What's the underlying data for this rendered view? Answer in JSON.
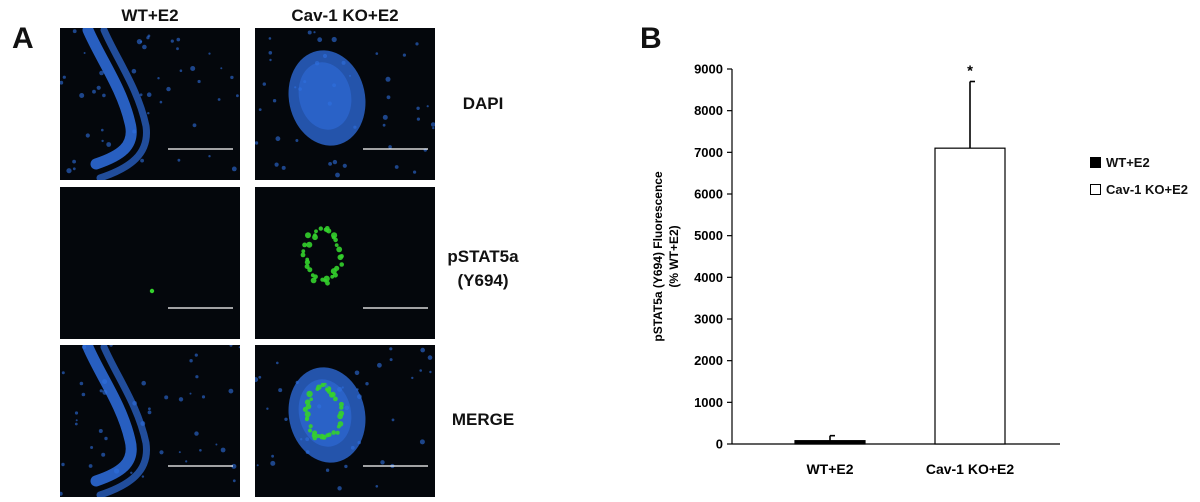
{
  "panel_a": {
    "letter": "A",
    "columns": [
      "WT+E2",
      "Cav-1 KO+E2"
    ],
    "rows": [
      {
        "label_lines": [
          "DAPI"
        ]
      },
      {
        "label_lines": [
          "pSTAT5a",
          "(Y694)"
        ]
      },
      {
        "label_lines": [
          "MERGE"
        ]
      }
    ],
    "colors": {
      "dapi": "#2f6fe0",
      "pstat": "#34d12c",
      "background": "#04070c",
      "scalebar": "#ffffff"
    }
  },
  "panel_b": {
    "letter": "B"
  },
  "chart_data": {
    "type": "bar",
    "categories": [
      "WT+E2",
      "Cav-1 KO+E2"
    ],
    "values": [
      80,
      7100
    ],
    "error_up": [
      120,
      1600
    ],
    "significance": [
      "",
      "*"
    ],
    "bar_styles": [
      {
        "fill": "#000000",
        "stroke": "#000000"
      },
      {
        "fill": "#ffffff",
        "stroke": "#000000"
      }
    ],
    "title": "",
    "xlabel": "",
    "ylabel": "pSTAT5a (Y694) Fluorescence",
    "ylabel_2": "(% WT+E2)",
    "ylim": [
      0,
      9000
    ],
    "yticks": [
      0,
      1000,
      2000,
      3000,
      4000,
      5000,
      6000,
      7000,
      8000,
      9000
    ],
    "grid": false,
    "legend_placement": "right",
    "legend": [
      {
        "label": "WT+E2",
        "fill": "#000000"
      },
      {
        "label": "Cav-1 KO+E2",
        "fill": "#ffffff"
      }
    ]
  }
}
